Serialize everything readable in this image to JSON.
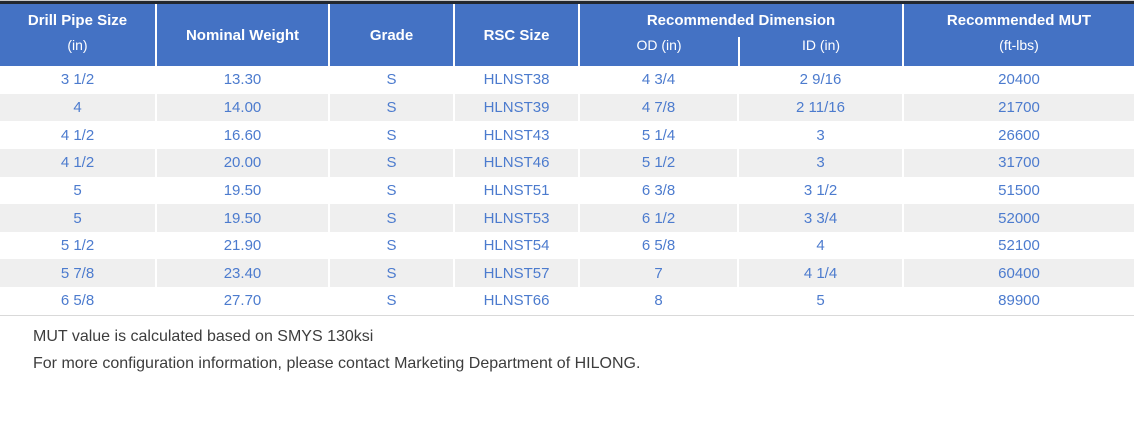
{
  "table": {
    "header": {
      "col1_label": "Drill Pipe Size",
      "col1_sub": "(in)",
      "col2_label": "Nominal Weight",
      "col3_label": "Grade",
      "col4_label": "RSC Size",
      "dimension_group_label": "Recommended Dimension",
      "od_label": "OD (in)",
      "id_label": "ID (in)",
      "mut_label": "Recommended MUT",
      "mut_sub": "(ft-lbs)"
    },
    "rows": [
      [
        "3 1/2",
        "13.30",
        "S",
        "HLNST38",
        "4 3/4",
        "2 9/16",
        "20400"
      ],
      [
        "4",
        "14.00",
        "S",
        "HLNST39",
        "4 7/8",
        "2 11/16",
        "21700"
      ],
      [
        "4 1/2",
        "16.60",
        "S",
        "HLNST43",
        "5 1/4",
        "3",
        "26600"
      ],
      [
        "4 1/2",
        "20.00",
        "S",
        "HLNST46",
        "5 1/2",
        "3",
        "31700"
      ],
      [
        "5",
        "19.50",
        "S",
        "HLNST51",
        "6 3/8",
        "3 1/2",
        "51500"
      ],
      [
        "5",
        "19.50",
        "S",
        "HLNST53",
        "6 1/2",
        "3 3/4",
        "52000"
      ],
      [
        "5 1/2",
        "21.90",
        "S",
        "HLNST54",
        "6 5/8",
        "4",
        "52100"
      ],
      [
        "5 7/8",
        "23.40",
        "S",
        "HLNST57",
        "7",
        "4 1/4",
        "60400"
      ],
      [
        "6 5/8",
        "27.70",
        "S",
        "HLNST66",
        "8",
        "5",
        "89900"
      ]
    ]
  },
  "notes": [
    "MUT value is calculated based on SMYS 130ksi",
    "For more configuration information, please contact Marketing Department of HILONG."
  ],
  "colors": {
    "header_bg": "#4472C4",
    "header_text": "#FFFFFF",
    "cell_text": "#4C7BCE",
    "stripe_bg": "#EFEFEF",
    "top_border": "#23282F",
    "bottom_border": "#D9D9D9",
    "note_text": "#3D3D3D"
  }
}
